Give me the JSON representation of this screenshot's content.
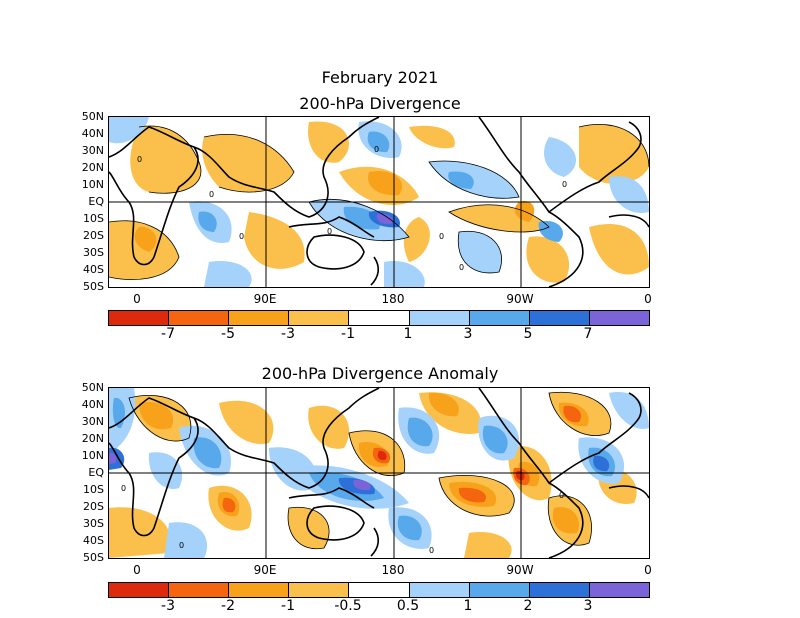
{
  "titles": {
    "month": "February 2021",
    "top": "200-hPa Divergence",
    "bottom": "200-hPa Divergence Anomaly"
  },
  "lat_labels": [
    "50N",
    "40N",
    "30N",
    "20N",
    "10N",
    "EQ",
    "10S",
    "20S",
    "30S",
    "40S",
    "50S"
  ],
  "lon_labels": [
    "0",
    "90E",
    "180",
    "90W",
    "0"
  ],
  "top_colorbar": {
    "labels": [
      "-7",
      "-5",
      "-3",
      "-1",
      "1",
      "3",
      "5",
      "7"
    ],
    "colors": [
      "#dd2a0c",
      "#f5640f",
      "#f8a21c",
      "#fbc04c",
      "#ffffff",
      "#a4d2fa",
      "#58a8ec",
      "#2d70d8",
      "#7b63d8"
    ]
  },
  "bottom_colorbar": {
    "labels": [
      "-3",
      "-2",
      "-1",
      "-0.5",
      "0.5",
      "1",
      "2",
      "3"
    ],
    "colors": [
      "#dd2a0c",
      "#f5640f",
      "#f8a21c",
      "#fbc04c",
      "#ffffff",
      "#a4d2fa",
      "#58a8ec",
      "#2d70d8",
      "#7b63d8"
    ]
  },
  "contour_labels": {
    "top": [
      "0",
      "0",
      "0",
      "0",
      "0",
      "0",
      "0",
      "0"
    ],
    "bottom": [
      "0",
      "0",
      "0",
      "0"
    ]
  }
}
